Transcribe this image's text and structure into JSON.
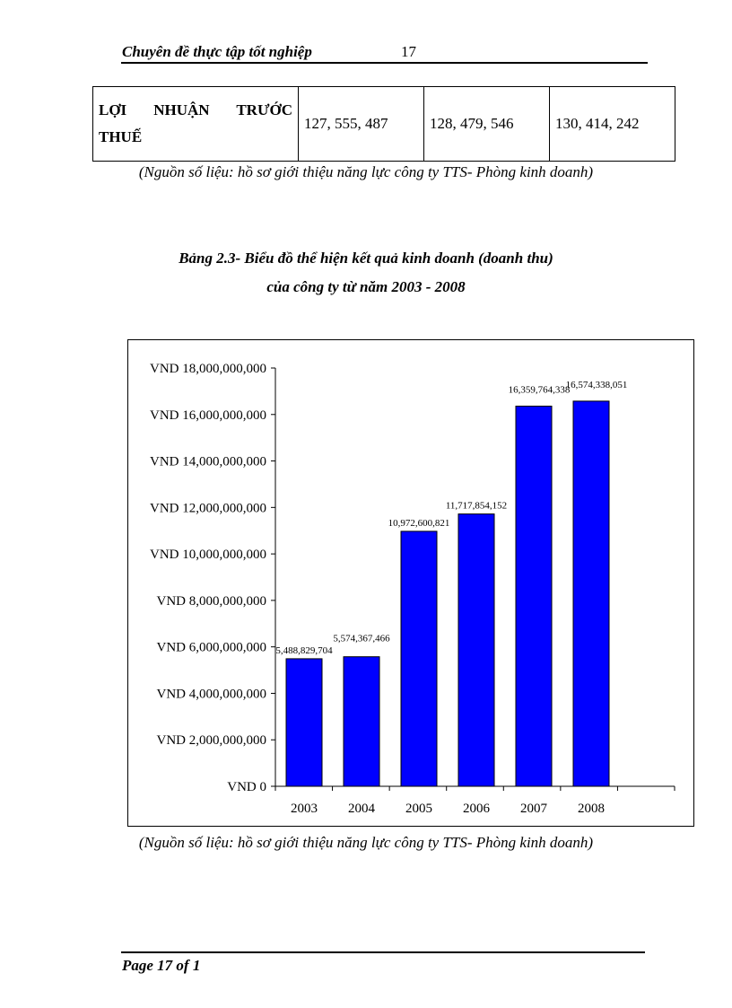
{
  "header": {
    "title": "Chuyên đề thực tập tốt nghiệp",
    "page_number": "17"
  },
  "table": {
    "row_label": "LỢI NHUẬN TRƯỚC THUẾ",
    "values": [
      "127, 555, 487",
      "128, 479, 546",
      "130, 414, 242"
    ]
  },
  "source_note_1": "(Nguồn số liệu: hồ sơ giới thiệu năng lực công ty TTS- Phòng kinh doanh)",
  "chart_title_line1": "Bảng 2.3- Biểu đồ thể hiện kết quả kinh doanh (doanh thu)",
  "chart_title_line2": "của công ty từ năm 2003 - 2008",
  "chart_data": {
    "type": "bar",
    "categories": [
      "2003",
      "2004",
      "2005",
      "2006",
      "2007",
      "2008"
    ],
    "values": [
      5488829704,
      5574367466,
      10972600821,
      11717854152,
      16359764338,
      16574338051
    ],
    "data_labels": [
      "5,488,829,704",
      "5,574,367,466",
      "10,972,600,821",
      "11,717,854,152",
      "16,359,764,338",
      "16,574,338,051"
    ],
    "ylim": [
      0,
      18000000000
    ],
    "yticks": [
      0,
      2000000000,
      4000000000,
      6000000000,
      8000000000,
      10000000000,
      12000000000,
      14000000000,
      16000000000,
      18000000000
    ],
    "ytick_labels": [
      "VND 0",
      "VND 2,000,000,000",
      "VND 4,000,000,000",
      "VND 6,000,000,000",
      "VND 8,000,000,000",
      "VND 10,000,000,000",
      "VND 12,000,000,000",
      "VND 14,000,000,000",
      "VND 16,000,000,000",
      "VND 18,000,000,000"
    ],
    "bar_color": "#0000FF",
    "grid": false,
    "legend": "none"
  },
  "source_note_2": "(Nguồn số liệu: hồ sơ giới thiệu năng lực công ty TTS- Phòng kinh doanh)",
  "footer": {
    "text": "Page 17 of 1"
  }
}
